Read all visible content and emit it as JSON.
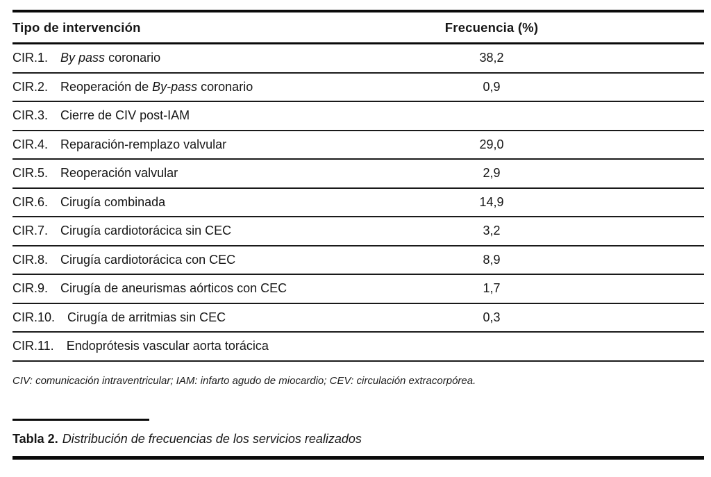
{
  "table": {
    "columns": {
      "intervention": "Tipo de intervención",
      "frequency": "Frecuencia (%)"
    },
    "rows": [
      {
        "code": "CIR.1.",
        "parts": [
          {
            "t": "By pass",
            "i": true
          },
          {
            "t": " coronario",
            "i": false
          }
        ],
        "value": "38,2"
      },
      {
        "code": "CIR.2.",
        "parts": [
          {
            "t": "Reoperación de ",
            "i": false
          },
          {
            "t": "By-pass",
            "i": true
          },
          {
            "t": " coronario",
            "i": false
          }
        ],
        "value": "0,9"
      },
      {
        "code": "CIR.3.",
        "parts": [
          {
            "t": "Cierre de CIV post-IAM",
            "i": false
          }
        ],
        "value": ""
      },
      {
        "code": "CIR.4.",
        "parts": [
          {
            "t": "Reparación-remplazo valvular",
            "i": false
          }
        ],
        "value": "29,0"
      },
      {
        "code": "CIR.5.",
        "parts": [
          {
            "t": "Reoperación valvular",
            "i": false
          }
        ],
        "value": "2,9"
      },
      {
        "code": "CIR.6.",
        "parts": [
          {
            "t": "Cirugía combinada",
            "i": false
          }
        ],
        "value": "14,9"
      },
      {
        "code": "CIR.7.",
        "parts": [
          {
            "t": "Cirugía cardiotorácica sin CEC",
            "i": false
          }
        ],
        "value": "3,2"
      },
      {
        "code": "CIR.8.",
        "parts": [
          {
            "t": "Cirugía cardiotorácica con CEC",
            "i": false
          }
        ],
        "value": "8,9"
      },
      {
        "code": "CIR.9.",
        "parts": [
          {
            "t": "Cirugía de aneurismas aórticos con CEC",
            "i": false
          }
        ],
        "value": "1,7"
      },
      {
        "code": "CIR.10.",
        "parts": [
          {
            "t": "Cirugía de arritmias sin CEC",
            "i": false
          }
        ],
        "value": "0,3"
      },
      {
        "code": "CIR.11.",
        "parts": [
          {
            "t": "Endoprótesis vascular aorta torácica",
            "i": false
          }
        ],
        "value": ""
      }
    ],
    "footnote": "CIV: comunicación intraventricular; IAM: infarto agudo de miocardio; CEV: circulación extracorpórea."
  },
  "caption": {
    "label": "Tabla 2.",
    "text": "Distribución de frecuencias de los servicios realizados"
  },
  "colors": {
    "rule": "#0a0a0a",
    "text": "#161616"
  }
}
